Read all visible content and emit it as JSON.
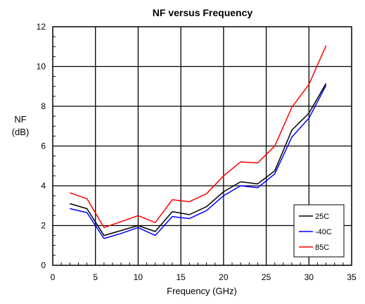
{
  "chart_data": {
    "type": "line",
    "title": "NF versus Frequency",
    "xlabel": "Frequency (GHz)",
    "ylabel_line1": "NF",
    "ylabel_line2": "(dB)",
    "xlim": [
      0,
      35
    ],
    "ylim": [
      0,
      12
    ],
    "xticks": [
      0,
      5,
      10,
      15,
      20,
      25,
      30,
      35
    ],
    "yticks": [
      0,
      2,
      4,
      6,
      8,
      10,
      12
    ],
    "grid": true,
    "legend_position": "bottom-right",
    "x": [
      2,
      4,
      6,
      8,
      10,
      12,
      14,
      16,
      18,
      20,
      22,
      24,
      26,
      28,
      30,
      32
    ],
    "series": [
      {
        "name": "25C",
        "color": "#000000",
        "values": [
          3.1,
          2.85,
          1.5,
          1.75,
          2.0,
          1.7,
          2.7,
          2.55,
          2.95,
          3.7,
          4.2,
          4.1,
          4.75,
          6.8,
          7.65,
          9.15
        ]
      },
      {
        "name": "-40C",
        "color": "#0000ff",
        "values": [
          2.85,
          2.65,
          1.35,
          1.6,
          1.9,
          1.5,
          2.45,
          2.35,
          2.75,
          3.5,
          4.0,
          3.9,
          4.6,
          6.45,
          7.4,
          9.05
        ]
      },
      {
        "name": "85C",
        "color": "#ff0000",
        "values": [
          3.65,
          3.35,
          1.9,
          2.2,
          2.5,
          2.15,
          3.3,
          3.2,
          3.6,
          4.5,
          5.2,
          5.15,
          6.0,
          7.95,
          9.1,
          11.05
        ]
      }
    ]
  }
}
